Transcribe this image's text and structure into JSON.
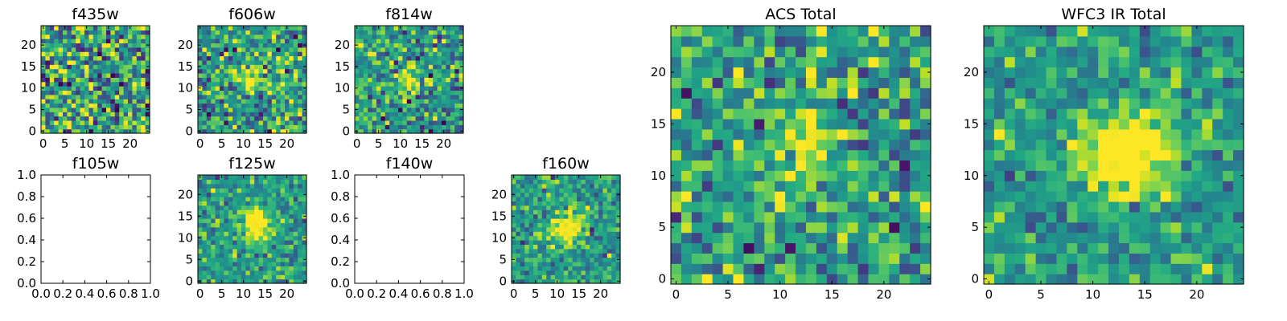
{
  "chart_data": [
    {
      "type": "heatmap",
      "title": "f435w",
      "grid_size": 25,
      "xlim": [
        -0.5,
        24.5
      ],
      "ylim": [
        -0.5,
        24.5
      ],
      "xticks": [
        "0",
        "5",
        "10",
        "15",
        "20"
      ],
      "yticks": [
        "0",
        "5",
        "10",
        "15",
        "20"
      ],
      "source_center": [
        12,
        12
      ],
      "source_sigma": 2.0,
      "source_amp": 0.05,
      "noise_std": 0.28,
      "seed": 1,
      "colormap": "viridis"
    },
    {
      "type": "heatmap",
      "title": "f606w",
      "grid_size": 25,
      "xlim": [
        -0.5,
        24.5
      ],
      "ylim": [
        -0.5,
        24.5
      ],
      "xticks": [
        "0",
        "5",
        "10",
        "15",
        "20"
      ],
      "yticks": [
        "0",
        "5",
        "10",
        "15",
        "20"
      ],
      "source_center": [
        12,
        12
      ],
      "source_sigma": 2.0,
      "source_amp": 0.45,
      "noise_std": 0.22,
      "seed": 2,
      "colormap": "viridis"
    },
    {
      "type": "heatmap",
      "title": "f814w",
      "grid_size": 25,
      "xlim": [
        -0.5,
        24.5
      ],
      "ylim": [
        -0.5,
        24.5
      ],
      "xticks": [
        "0",
        "5",
        "10",
        "15",
        "20"
      ],
      "yticks": [
        "0",
        "5",
        "10",
        "15",
        "20"
      ],
      "source_center": [
        12,
        12
      ],
      "source_sigma": 2.0,
      "source_amp": 0.45,
      "noise_std": 0.22,
      "seed": 3,
      "colormap": "viridis"
    },
    {
      "type": "empty",
      "title": "f105w",
      "xlim": [
        0,
        1
      ],
      "ylim": [
        0,
        1
      ],
      "xticks": [
        "0.0",
        "0.2",
        "0.4",
        "0.6",
        "0.8",
        "1.0"
      ],
      "yticks": [
        "0.0",
        "0.2",
        "0.4",
        "0.6",
        "0.8",
        "1.0"
      ]
    },
    {
      "type": "heatmap",
      "title": "f125w",
      "grid_size": 25,
      "xlim": [
        -0.5,
        24.5
      ],
      "ylim": [
        -0.5,
        24.5
      ],
      "xticks": [
        "0",
        "5",
        "10",
        "15",
        "20"
      ],
      "yticks": [
        "0",
        "5",
        "10",
        "15",
        "20"
      ],
      "source_center": [
        13,
        13
      ],
      "source_sigma": 2.5,
      "source_amp": 0.7,
      "noise_std": 0.15,
      "seed": 4,
      "colormap": "viridis"
    },
    {
      "type": "empty",
      "title": "f140w",
      "xlim": [
        0,
        1
      ],
      "ylim": [
        0,
        1
      ],
      "xticks": [
        "0.0",
        "0.2",
        "0.4",
        "0.6",
        "0.8",
        "1.0"
      ],
      "yticks": [
        "0.0",
        "0.2",
        "0.4",
        "0.6",
        "0.8",
        "1.0"
      ]
    },
    {
      "type": "heatmap",
      "title": "f160w",
      "grid_size": 25,
      "xlim": [
        -0.5,
        24.5
      ],
      "ylim": [
        -0.5,
        24.5
      ],
      "xticks": [
        "0",
        "5",
        "10",
        "15",
        "20"
      ],
      "yticks": [
        "0",
        "5",
        "10",
        "15",
        "20"
      ],
      "source_center": [
        12,
        12
      ],
      "source_sigma": 2.5,
      "source_amp": 0.65,
      "noise_std": 0.15,
      "seed": 5,
      "colormap": "viridis"
    },
    {
      "type": "heatmap",
      "title": "ACS Total",
      "grid_size": 25,
      "xlim": [
        -0.5,
        24.5
      ],
      "ylim": [
        -0.5,
        24.5
      ],
      "xticks": [
        "0",
        "5",
        "10",
        "15",
        "20"
      ],
      "yticks": [
        "0",
        "5",
        "10",
        "15",
        "20"
      ],
      "source_center": [
        12,
        12
      ],
      "source_sigma": 2.3,
      "source_amp": 0.5,
      "noise_std": 0.2,
      "seed": 6,
      "colormap": "viridis"
    },
    {
      "type": "heatmap",
      "title": "WFC3 IR Total",
      "grid_size": 25,
      "xlim": [
        -0.5,
        24.5
      ],
      "ylim": [
        -0.5,
        24.5
      ],
      "xticks": [
        "0",
        "5",
        "10",
        "15",
        "20"
      ],
      "yticks": [
        "0",
        "5",
        "10",
        "15",
        "20"
      ],
      "source_center": [
        13,
        12
      ],
      "source_sigma": 2.8,
      "source_amp": 0.75,
      "noise_std": 0.14,
      "seed": 7,
      "colormap": "viridis"
    }
  ]
}
